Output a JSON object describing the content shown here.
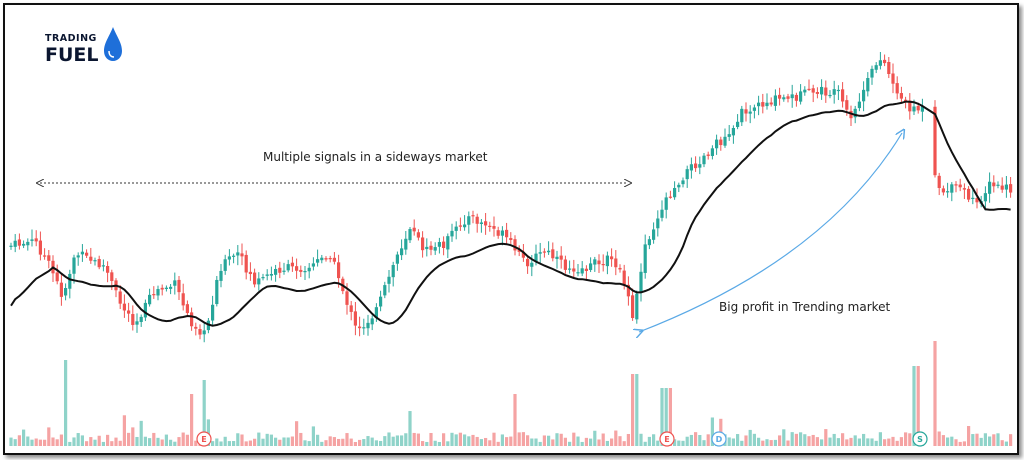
{
  "logo": {
    "line1": "TRADING",
    "line2": "FUEL"
  },
  "chart_data": {
    "type": "candlestick",
    "annotations": [
      {
        "text": "Multiple signals in a sideways market"
      },
      {
        "text": "Big profit in Trending market"
      }
    ],
    "series": [
      {
        "name": "",
        "kind": "price candles"
      },
      {
        "name": "",
        "kind": "moving average"
      },
      {
        "name": "",
        "kind": "volume"
      }
    ],
    "event_markers": [
      "E",
      "E",
      "D",
      "S"
    ],
    "colors": {
      "up": "#26a69a",
      "down": "#ef5350",
      "ma": "#111111",
      "volume_up": "#8fd3c9",
      "volume_down": "#f5a3a3",
      "arrow": "#5aa9e6"
    },
    "grid": false,
    "legend": "none"
  }
}
